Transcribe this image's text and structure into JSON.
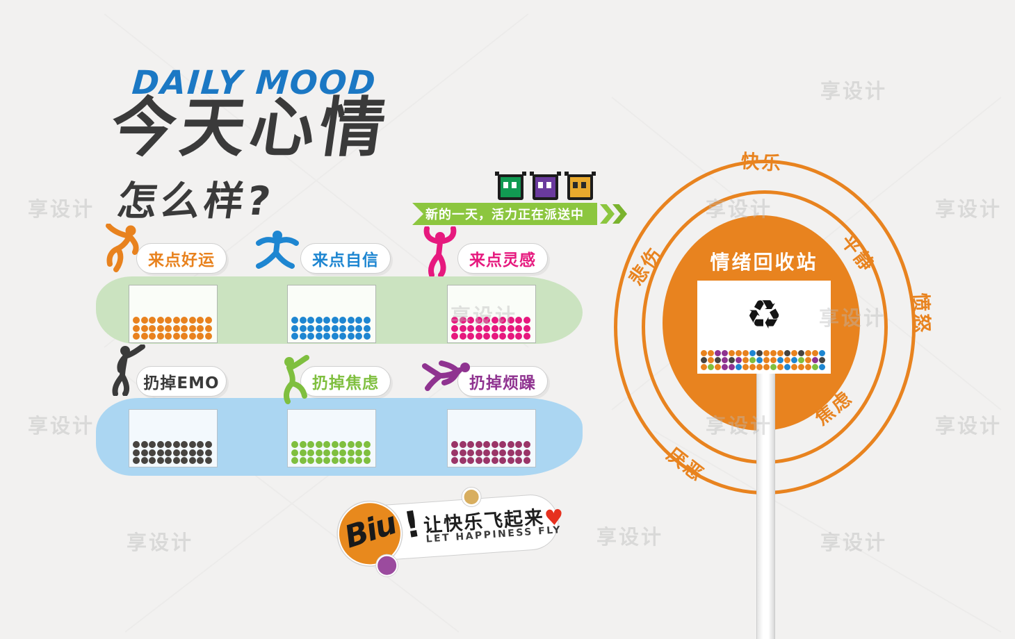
{
  "page": {
    "background": "#f2f1f0",
    "watermark_text": "享设计"
  },
  "header": {
    "title_en": "DAILY MOOD",
    "title_cn_line1": "今天心情",
    "title_cn_line2": "怎么样?",
    "en_color": "#1b78c4",
    "cn_color": "#3a3a3a"
  },
  "delivery_banner": {
    "text": "新的一天，活力正在派送中",
    "bg_color": "#8cc63f",
    "text_color": "#ffffff"
  },
  "pixel_emojis": [
    {
      "name": "green-pixel-face",
      "body": "#119a52",
      "eyes": "#ffffff"
    },
    {
      "name": "purple-pixel-face",
      "body": "#6a3a9d",
      "eyes": "#ffffff"
    },
    {
      "name": "gold-pixel-face",
      "body": "#e9a92d",
      "eyes": "#2a2a2a"
    }
  ],
  "moods": [
    {
      "label": "来点好运",
      "color": "#e8821e",
      "dot_color": "#e8821e",
      "dots_per_row": 10,
      "dot_rows": 3
    },
    {
      "label": "来点自信",
      "color": "#1e86d1",
      "dot_color": "#1e86d1",
      "dots_per_row": 10,
      "dot_rows": 3
    },
    {
      "label": "来点灵感",
      "color": "#e6197e",
      "dot_color": "#e6197e",
      "dots_per_row": 10,
      "dot_rows": 3
    },
    {
      "label": "扔掉EMO",
      "color": "#3a3a3a",
      "dot_color": "#474440",
      "dots_per_row": 10,
      "dot_rows": 3
    },
    {
      "label": "扔掉焦虑",
      "color": "#7fbf3f",
      "dot_color": "#7fbf3f",
      "dots_per_row": 10,
      "dot_rows": 3
    },
    {
      "label": "扔掉烦躁",
      "color": "#8f3390",
      "dot_color": "#9a3568",
      "dots_per_row": 10,
      "dot_rows": 3
    }
  ],
  "recycle_station": {
    "title": "情绪回收站",
    "ring_color": "#e8831f",
    "labels": [
      "快乐",
      "平静",
      "悲伤",
      "愤怒",
      "焦虑",
      "厌恶"
    ],
    "recycle_icon": "♻",
    "palette": {
      "o": "#e8821e",
      "b": "#1e86d1",
      "p": "#8f3390",
      "d": "#474440",
      "g": "#7fbf3f",
      "m": "#9a3568"
    },
    "dot_rows": [
      "ooppooobdooododoob",
      "dodpdpogboobobgopd",
      "ogoppboooogobooogb"
    ]
  },
  "happiness_badge": {
    "script_text": "Biu",
    "exclaim": "!",
    "cn_text": "让快乐飞起来",
    "en_text": "LET HAPPINESS FLY",
    "heart": "♥",
    "heart_color": "#e6311f",
    "circle_color": "#e8891d",
    "dot_color": "#9b4b9e",
    "ball_color": "#d8ae5f"
  }
}
